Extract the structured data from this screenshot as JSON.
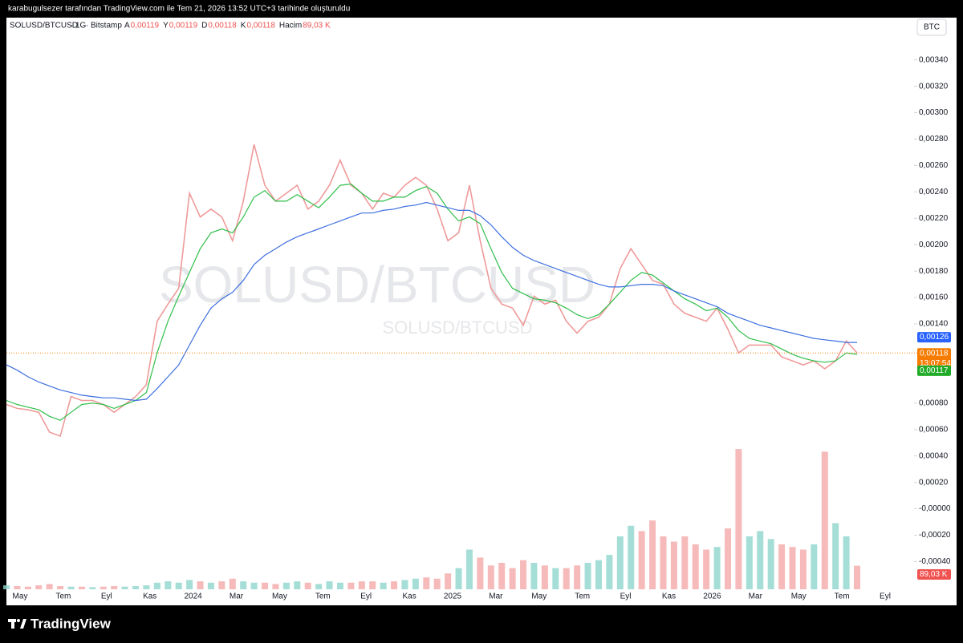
{
  "header": {
    "text": "karabugulsezer tarafından TradingView.com ile Tem 21, 2026 13:52 UTC+3 tarihinde oluşturuldu"
  },
  "footer": {
    "logo": "TradingView"
  },
  "chart_data": {
    "type": "line",
    "symbol": "SOLUSD/BTCUSD",
    "interval": "1G",
    "exchange": "Bitstamp",
    "currency": "BTC",
    "ohlc": [
      {
        "key": "A",
        "value": 0.00119,
        "value_label": "0,00119"
      },
      {
        "key": "Y",
        "value": 0.00119,
        "value_label": "0,00119"
      },
      {
        "key": "D",
        "value": 0.00118,
        "value_label": "0,00118"
      },
      {
        "key": "K",
        "value": 0.00118,
        "value_label": "0,00118"
      }
    ],
    "volume_key": "Hacim",
    "countdown": "13:07:54",
    "xticks": [
      "May",
      "Tem",
      "Eyl",
      "Kas",
      "2024",
      "Mar",
      "May",
      "Tem",
      "Eyl",
      "Kas",
      "2025",
      "Mar",
      "May",
      "Tem",
      "Eyl",
      "Kas",
      "2026",
      "Mar",
      "May",
      "Tem",
      "Eyl"
    ],
    "ylim": [
      -0.00061,
      0.00372
    ],
    "yticks": [
      {
        "value": 0.0034,
        "label": "0,00340"
      },
      {
        "value": 0.0032,
        "label": "0,00320"
      },
      {
        "value": 0.003,
        "label": "0,00300"
      },
      {
        "value": 0.0028,
        "label": "0,00280"
      },
      {
        "value": 0.0026,
        "label": "0,00260"
      },
      {
        "value": 0.0024,
        "label": "0,00240"
      },
      {
        "value": 0.0022,
        "label": "0,00220"
      },
      {
        "value": 0.002,
        "label": "0,00200"
      },
      {
        "value": 0.0018,
        "label": "0,00180"
      },
      {
        "value": 0.0016,
        "label": "0,00160"
      },
      {
        "value": 0.0014,
        "label": "0,00140"
      },
      {
        "value": 0.0008,
        "label": "0,00080"
      },
      {
        "value": 0.0006,
        "label": "0,00060"
      },
      {
        "value": 0.0004,
        "label": "0,00040"
      },
      {
        "value": 0.0002,
        "label": "0,00020"
      },
      {
        "value": 0,
        "label": "-0,00000"
      },
      {
        "value": -0.0002,
        "label": "-0,00020"
      },
      {
        "value": -0.0004,
        "label": "-0,00040"
      }
    ],
    "grid": false,
    "series": [
      {
        "color": "#ef9a9a",
        "badge": "#f57c00",
        "last_label": "0,00118",
        "values": [
          0.00079,
          0.00076,
          0.00075,
          0.00073,
          0.00058,
          0.00055,
          0.00085,
          0.00082,
          0.00082,
          0.00079,
          0.00073,
          0.00079,
          0.00085,
          0.00094,
          0.00142,
          0.00155,
          0.00167,
          0.00239,
          0.00221,
          0.00227,
          0.00221,
          0.00203,
          0.00233,
          0.00276,
          0.00245,
          0.00233,
          0.00239,
          0.00245,
          0.00227,
          0.00233,
          0.00245,
          0.00264,
          0.00245,
          0.00239,
          0.00227,
          0.00239,
          0.00236,
          0.00245,
          0.00251,
          0.00245,
          0.00227,
          0.00203,
          0.00209,
          0.00245,
          0.00203,
          0.00167,
          0.00155,
          0.00152,
          0.00139,
          0.00161,
          0.00155,
          0.00158,
          0.00142,
          0.00133,
          0.00142,
          0.00145,
          0.00155,
          0.00182,
          0.00197,
          0.00185,
          0.00173,
          0.0017,
          0.00155,
          0.00148,
          0.00145,
          0.00142,
          0.00152,
          0.00136,
          0.00118,
          0.00124,
          0.00124,
          0.00124,
          0.00115,
          0.00112,
          0.00109,
          0.00112,
          0.00106,
          0.00112,
          0.00127,
          0.00118
        ]
      },
      {
        "color": "#2fbf4a",
        "badge": "#22ab28",
        "last_label": "0,00117",
        "values": [
          0.00082,
          0.00079,
          0.00077,
          0.00075,
          0.0007,
          0.00067,
          0.00073,
          0.00079,
          0.0008,
          0.00079,
          0.00076,
          0.00079,
          0.00082,
          0.00088,
          0.00118,
          0.00142,
          0.00161,
          0.00179,
          0.00197,
          0.00209,
          0.00212,
          0.00209,
          0.00221,
          0.00236,
          0.00241,
          0.00233,
          0.00233,
          0.00238,
          0.00233,
          0.00228,
          0.00236,
          0.00245,
          0.00246,
          0.00239,
          0.00233,
          0.00233,
          0.00236,
          0.00236,
          0.00241,
          0.00244,
          0.00239,
          0.00227,
          0.00218,
          0.00221,
          0.00216,
          0.00197,
          0.00179,
          0.00167,
          0.00163,
          0.00159,
          0.00158,
          0.00156,
          0.00152,
          0.00147,
          0.00144,
          0.00147,
          0.00155,
          0.00164,
          0.00173,
          0.00179,
          0.00177,
          0.00171,
          0.00165,
          0.00159,
          0.00155,
          0.0015,
          0.00152,
          0.00145,
          0.00135,
          0.00129,
          0.00127,
          0.00125,
          0.00121,
          0.00117,
          0.00114,
          0.00112,
          0.00111,
          0.00112,
          0.00118,
          0.00117
        ]
      },
      {
        "color": "#3d6fe0",
        "badge": "#2962ff",
        "last_label": "0,00126",
        "values": [
          0.00109,
          0.00105,
          0.001,
          0.00096,
          0.00093,
          0.0009,
          0.00088,
          0.00086,
          0.00085,
          0.00084,
          0.00084,
          0.00083,
          0.00082,
          0.00083,
          0.00091,
          0.001,
          0.00109,
          0.00124,
          0.00139,
          0.00152,
          0.00159,
          0.00164,
          0.00173,
          0.00185,
          0.00192,
          0.00197,
          0.00202,
          0.00206,
          0.00209,
          0.00212,
          0.00215,
          0.00218,
          0.00221,
          0.00224,
          0.00224,
          0.00226,
          0.00227,
          0.00229,
          0.0023,
          0.00232,
          0.0023,
          0.00228,
          0.00226,
          0.00226,
          0.00222,
          0.00215,
          0.00206,
          0.00198,
          0.00192,
          0.00188,
          0.00185,
          0.00182,
          0.00179,
          0.00176,
          0.00173,
          0.0017,
          0.00168,
          0.00168,
          0.00169,
          0.0017,
          0.0017,
          0.00169,
          0.00165,
          0.00162,
          0.00159,
          0.00156,
          0.00153,
          0.00148,
          0.00145,
          0.00142,
          0.00139,
          0.00137,
          0.00135,
          0.00133,
          0.00131,
          0.00129,
          0.00128,
          0.00127,
          0.00126,
          0.00126
        ]
      }
    ],
    "volume": {
      "up_color": "#8fd6cc",
      "down_color": "#f4a9a9",
      "badge": "#ef5350",
      "last_label": "89,03 K",
      "values": [
        15,
        12,
        10,
        15,
        20,
        12,
        10,
        10,
        8,
        10,
        12,
        10,
        12,
        15,
        25,
        30,
        25,
        35,
        30,
        25,
        30,
        40,
        30,
        25,
        25,
        20,
        25,
        30,
        25,
        20,
        30,
        25,
        25,
        30,
        30,
        25,
        30,
        35,
        40,
        45,
        40,
        60,
        80,
        150,
        120,
        90,
        100,
        80,
        110,
        100,
        90,
        80,
        80,
        90,
        100,
        110,
        130,
        200,
        240,
        220,
        260,
        200,
        180,
        200,
        170,
        150,
        160,
        230,
        530,
        200,
        220,
        190,
        170,
        160,
        150,
        170,
        520,
        250,
        200,
        89.03
      ]
    }
  }
}
